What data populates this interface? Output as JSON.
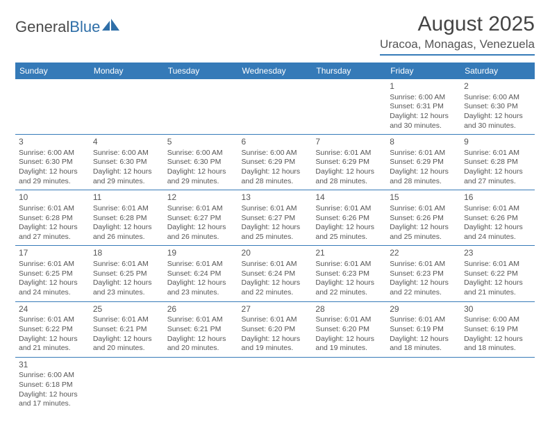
{
  "logo": {
    "text1": "General",
    "text2": "Blue"
  },
  "title": "August 2025",
  "location": "Uracoa, Monagas, Venezuela",
  "colors": {
    "header_bg": "#357ab8",
    "header_text": "#ffffff",
    "border": "#357ab8",
    "text": "#555555",
    "logo_gray": "#4a4a4a",
    "logo_blue": "#2f6fa8"
  },
  "weekdays": [
    "Sunday",
    "Monday",
    "Tuesday",
    "Wednesday",
    "Thursday",
    "Friday",
    "Saturday"
  ],
  "first_weekday_index": 5,
  "days": [
    {
      "n": 1,
      "sr": "6:00 AM",
      "ss": "6:31 PM",
      "dl": "12 hours and 30 minutes."
    },
    {
      "n": 2,
      "sr": "6:00 AM",
      "ss": "6:30 PM",
      "dl": "12 hours and 30 minutes."
    },
    {
      "n": 3,
      "sr": "6:00 AM",
      "ss": "6:30 PM",
      "dl": "12 hours and 29 minutes."
    },
    {
      "n": 4,
      "sr": "6:00 AM",
      "ss": "6:30 PM",
      "dl": "12 hours and 29 minutes."
    },
    {
      "n": 5,
      "sr": "6:00 AM",
      "ss": "6:30 PM",
      "dl": "12 hours and 29 minutes."
    },
    {
      "n": 6,
      "sr": "6:00 AM",
      "ss": "6:29 PM",
      "dl": "12 hours and 28 minutes."
    },
    {
      "n": 7,
      "sr": "6:01 AM",
      "ss": "6:29 PM",
      "dl": "12 hours and 28 minutes."
    },
    {
      "n": 8,
      "sr": "6:01 AM",
      "ss": "6:29 PM",
      "dl": "12 hours and 28 minutes."
    },
    {
      "n": 9,
      "sr": "6:01 AM",
      "ss": "6:28 PM",
      "dl": "12 hours and 27 minutes."
    },
    {
      "n": 10,
      "sr": "6:01 AM",
      "ss": "6:28 PM",
      "dl": "12 hours and 27 minutes."
    },
    {
      "n": 11,
      "sr": "6:01 AM",
      "ss": "6:28 PM",
      "dl": "12 hours and 26 minutes."
    },
    {
      "n": 12,
      "sr": "6:01 AM",
      "ss": "6:27 PM",
      "dl": "12 hours and 26 minutes."
    },
    {
      "n": 13,
      "sr": "6:01 AM",
      "ss": "6:27 PM",
      "dl": "12 hours and 25 minutes."
    },
    {
      "n": 14,
      "sr": "6:01 AM",
      "ss": "6:26 PM",
      "dl": "12 hours and 25 minutes."
    },
    {
      "n": 15,
      "sr": "6:01 AM",
      "ss": "6:26 PM",
      "dl": "12 hours and 25 minutes."
    },
    {
      "n": 16,
      "sr": "6:01 AM",
      "ss": "6:26 PM",
      "dl": "12 hours and 24 minutes."
    },
    {
      "n": 17,
      "sr": "6:01 AM",
      "ss": "6:25 PM",
      "dl": "12 hours and 24 minutes."
    },
    {
      "n": 18,
      "sr": "6:01 AM",
      "ss": "6:25 PM",
      "dl": "12 hours and 23 minutes."
    },
    {
      "n": 19,
      "sr": "6:01 AM",
      "ss": "6:24 PM",
      "dl": "12 hours and 23 minutes."
    },
    {
      "n": 20,
      "sr": "6:01 AM",
      "ss": "6:24 PM",
      "dl": "12 hours and 22 minutes."
    },
    {
      "n": 21,
      "sr": "6:01 AM",
      "ss": "6:23 PM",
      "dl": "12 hours and 22 minutes."
    },
    {
      "n": 22,
      "sr": "6:01 AM",
      "ss": "6:23 PM",
      "dl": "12 hours and 22 minutes."
    },
    {
      "n": 23,
      "sr": "6:01 AM",
      "ss": "6:22 PM",
      "dl": "12 hours and 21 minutes."
    },
    {
      "n": 24,
      "sr": "6:01 AM",
      "ss": "6:22 PM",
      "dl": "12 hours and 21 minutes."
    },
    {
      "n": 25,
      "sr": "6:01 AM",
      "ss": "6:21 PM",
      "dl": "12 hours and 20 minutes."
    },
    {
      "n": 26,
      "sr": "6:01 AM",
      "ss": "6:21 PM",
      "dl": "12 hours and 20 minutes."
    },
    {
      "n": 27,
      "sr": "6:01 AM",
      "ss": "6:20 PM",
      "dl": "12 hours and 19 minutes."
    },
    {
      "n": 28,
      "sr": "6:01 AM",
      "ss": "6:20 PM",
      "dl": "12 hours and 19 minutes."
    },
    {
      "n": 29,
      "sr": "6:01 AM",
      "ss": "6:19 PM",
      "dl": "12 hours and 18 minutes."
    },
    {
      "n": 30,
      "sr": "6:00 AM",
      "ss": "6:19 PM",
      "dl": "12 hours and 18 minutes."
    },
    {
      "n": 31,
      "sr": "6:00 AM",
      "ss": "6:18 PM",
      "dl": "12 hours and 17 minutes."
    }
  ],
  "labels": {
    "sunrise": "Sunrise:",
    "sunset": "Sunset:",
    "daylight": "Daylight:"
  }
}
